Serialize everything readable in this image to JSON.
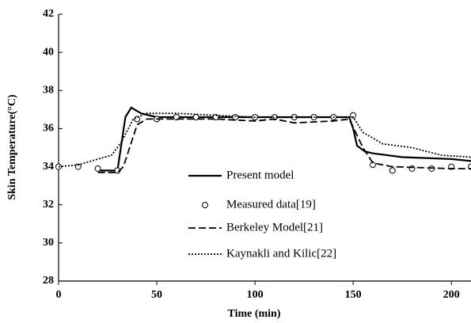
{
  "chart_data": {
    "type": "line",
    "xlabel": "Time (min)",
    "ylabel": "Skin Temperature(°C)",
    "xlim": [
      0,
      210
    ],
    "ylim": [
      28,
      42
    ],
    "xticks": [
      0,
      50,
      100,
      150,
      200
    ],
    "yticks": [
      28,
      30,
      32,
      34,
      36,
      38,
      40,
      42
    ],
    "grid": false,
    "series": [
      {
        "name": "Present model",
        "color": "#000000",
        "style": "solid",
        "x": [
          20,
          30,
          31,
          34,
          37,
          42,
          50,
          100,
          148,
          150,
          152,
          156,
          160,
          175,
          200,
          210
        ],
        "values": [
          33.8,
          33.8,
          34.5,
          36.6,
          37.1,
          36.8,
          36.6,
          36.6,
          36.6,
          36.0,
          35.1,
          34.8,
          34.7,
          34.5,
          34.4,
          34.3
        ]
      },
      {
        "name": "Measured data[19]",
        "color": "#000000",
        "style": "marker",
        "x": [
          0,
          10,
          20,
          30,
          40,
          50,
          60,
          70,
          80,
          90,
          100,
          110,
          120,
          130,
          140,
          150,
          160,
          170,
          180,
          190,
          200,
          210
        ],
        "values": [
          34.0,
          34.0,
          33.9,
          33.8,
          36.5,
          36.5,
          36.6,
          36.6,
          36.6,
          36.6,
          36.6,
          36.6,
          36.6,
          36.6,
          36.6,
          36.7,
          34.1,
          33.8,
          33.9,
          33.9,
          34.0,
          34.0
        ]
      },
      {
        "name": "Berkeley Model[21]",
        "color": "#000000",
        "style": "dashed",
        "x": [
          20,
          30,
          33,
          40,
          45,
          60,
          80,
          100,
          110,
          120,
          140,
          148,
          155,
          160,
          170,
          200,
          210
        ],
        "values": [
          33.7,
          33.7,
          34.0,
          36.2,
          36.5,
          36.5,
          36.5,
          36.4,
          36.5,
          36.3,
          36.4,
          36.5,
          35.0,
          34.2,
          34.0,
          33.9,
          33.9
        ]
      },
      {
        "name": "Kaynakli and Kilic[22]",
        "color": "#000000",
        "style": "dotted",
        "x": [
          0,
          10,
          20,
          27,
          32,
          38,
          45,
          60,
          80,
          100,
          140,
          150,
          155,
          165,
          180,
          195,
          210
        ],
        "values": [
          34.0,
          34.1,
          34.4,
          34.6,
          35.3,
          36.5,
          36.8,
          36.8,
          36.7,
          36.6,
          36.6,
          36.6,
          35.8,
          35.2,
          35.0,
          34.6,
          34.5
        ]
      }
    ]
  }
}
